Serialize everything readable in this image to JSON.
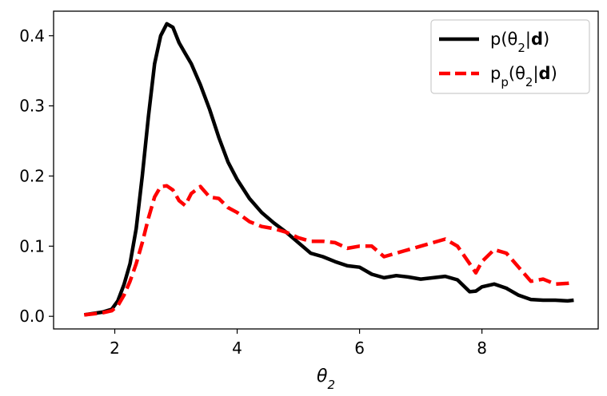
{
  "chart_data": {
    "type": "line",
    "title": "",
    "xlabel": "θ",
    "xlabel_sub": "2",
    "ylabel": "",
    "xlim": [
      1.0,
      9.9
    ],
    "ylim": [
      -0.018,
      0.435
    ],
    "xticks": [
      2,
      4,
      6,
      8
    ],
    "yticks": [
      0.0,
      0.1,
      0.2,
      0.3,
      0.4
    ],
    "xtick_labels": [
      "2",
      "4",
      "6",
      "8"
    ],
    "ytick_labels": [
      "0.0",
      "0.1",
      "0.2",
      "0.3",
      "0.4"
    ],
    "grid": false,
    "legend_position": "top-right",
    "series": [
      {
        "name": "p(θ2|d)",
        "legend_parts": [
          "p(θ",
          "2",
          "|",
          "d",
          ")"
        ],
        "color": "#000000",
        "style": "solid",
        "x": [
          1.5,
          1.8,
          1.95,
          2.05,
          2.15,
          2.25,
          2.35,
          2.45,
          2.55,
          2.65,
          2.75,
          2.85,
          2.95,
          3.05,
          3.15,
          3.25,
          3.4,
          3.55,
          3.7,
          3.85,
          4.0,
          4.2,
          4.4,
          4.6,
          4.8,
          5.0,
          5.2,
          5.4,
          5.6,
          5.8,
          6.0,
          6.2,
          6.4,
          6.6,
          6.8,
          7.0,
          7.2,
          7.4,
          7.6,
          7.8,
          7.9,
          8.0,
          8.2,
          8.4,
          8.6,
          8.8,
          9.0,
          9.2,
          9.4,
          9.5
        ],
        "y": [
          0.002,
          0.006,
          0.01,
          0.022,
          0.045,
          0.075,
          0.125,
          0.2,
          0.285,
          0.36,
          0.4,
          0.417,
          0.412,
          0.39,
          0.375,
          0.36,
          0.33,
          0.295,
          0.255,
          0.22,
          0.195,
          0.168,
          0.148,
          0.133,
          0.12,
          0.105,
          0.09,
          0.085,
          0.078,
          0.072,
          0.07,
          0.06,
          0.055,
          0.058,
          0.056,
          0.053,
          0.055,
          0.057,
          0.052,
          0.035,
          0.036,
          0.042,
          0.046,
          0.04,
          0.03,
          0.024,
          0.023,
          0.023,
          0.022,
          0.023
        ]
      },
      {
        "name": "pp(θ2|d)",
        "legend_parts": [
          "p",
          "p",
          "(θ",
          "2",
          "|",
          "d",
          ")"
        ],
        "color": "#ff0000",
        "style": "dashed",
        "x": [
          1.5,
          1.8,
          1.95,
          2.05,
          2.15,
          2.25,
          2.35,
          2.45,
          2.55,
          2.65,
          2.75,
          2.85,
          2.95,
          3.05,
          3.15,
          3.25,
          3.4,
          3.55,
          3.7,
          3.85,
          4.0,
          4.2,
          4.4,
          4.6,
          4.8,
          5.0,
          5.2,
          5.4,
          5.6,
          5.8,
          6.0,
          6.2,
          6.4,
          6.6,
          6.8,
          7.0,
          7.2,
          7.4,
          7.6,
          7.8,
          7.9,
          8.0,
          8.2,
          8.4,
          8.6,
          8.8,
          9.0,
          9.2,
          9.4,
          9.5
        ],
        "y": [
          0.002,
          0.005,
          0.008,
          0.015,
          0.03,
          0.05,
          0.075,
          0.105,
          0.14,
          0.17,
          0.185,
          0.186,
          0.18,
          0.165,
          0.158,
          0.175,
          0.185,
          0.17,
          0.168,
          0.155,
          0.148,
          0.135,
          0.128,
          0.125,
          0.12,
          0.112,
          0.107,
          0.107,
          0.105,
          0.097,
          0.1,
          0.1,
          0.085,
          0.09,
          0.095,
          0.1,
          0.105,
          0.11,
          0.1,
          0.075,
          0.062,
          0.078,
          0.095,
          0.09,
          0.07,
          0.05,
          0.053,
          0.046,
          0.047,
          0.048
        ]
      }
    ]
  }
}
